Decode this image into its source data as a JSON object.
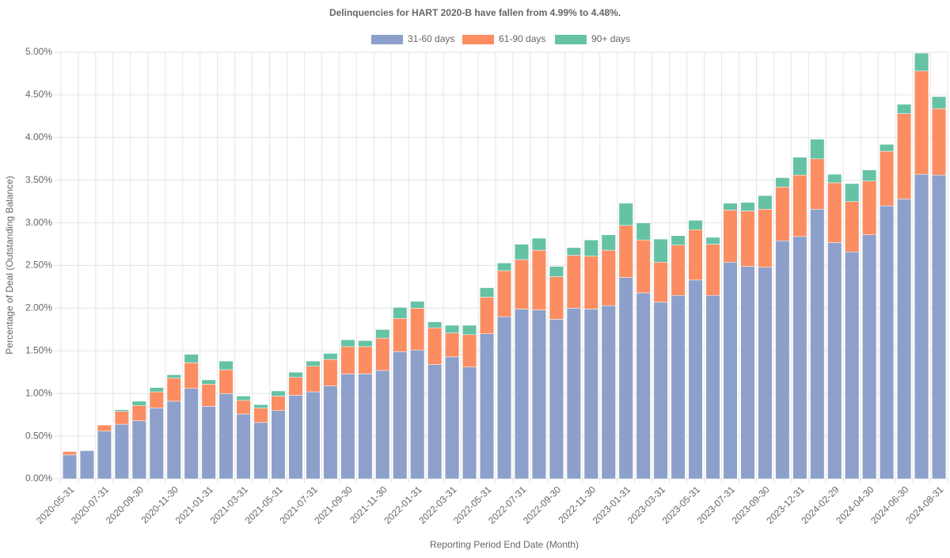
{
  "chart_data": {
    "type": "stacked-bar",
    "title": "Delinquencies for HART 2020-B have fallen from 4.99% to 4.48%.",
    "x_label": "Reporting Period End Date (Month)",
    "y_label": "Percentage of Deal (Outstanding Balance)",
    "categories": [
      "2020-05-31",
      null,
      "2020-07-31",
      null,
      "2020-09-30",
      null,
      "2020-11-30",
      null,
      "2021-01-31",
      null,
      "2021-03-31",
      null,
      "2021-05-31",
      null,
      "2021-07-31",
      null,
      "2021-09-30",
      null,
      "2021-11-30",
      null,
      "2022-01-31",
      null,
      "2022-03-31",
      null,
      "2022-05-31",
      null,
      "2022-07-31",
      null,
      "2022-09-30",
      null,
      "2022-11-30",
      null,
      "2023-01-31",
      null,
      "2023-03-31",
      null,
      "2023-05-31",
      null,
      "2023-07-31",
      null,
      "2023-09-30",
      null,
      "2023-12-31",
      null,
      "2024-02-29",
      null,
      "2024-04-30",
      null,
      "2024-06-30",
      null,
      "2024-08-31"
    ],
    "series": [
      {
        "name": "31-60 days",
        "color": "#8da0cb",
        "values": [
          0.28,
          0.33,
          0.56,
          0.64,
          0.68,
          0.83,
          0.91,
          1.06,
          0.85,
          1.0,
          0.76,
          0.66,
          0.8,
          0.98,
          1.02,
          1.09,
          1.23,
          1.23,
          1.27,
          1.49,
          1.51,
          1.34,
          1.43,
          1.31,
          1.7,
          1.9,
          1.99,
          1.98,
          1.87,
          2.0,
          1.99,
          2.03,
          2.36,
          2.18,
          2.07,
          2.15,
          2.33,
          2.15,
          2.54,
          2.49,
          2.48,
          2.79,
          2.84,
          3.16,
          2.77,
          2.66,
          2.86,
          3.2,
          3.28,
          3.57,
          3.56
        ]
      },
      {
        "name": "61-90 days",
        "color": "#fc8d62",
        "values": [
          0.04,
          0,
          0.07,
          0.15,
          0.18,
          0.19,
          0.27,
          0.3,
          0.26,
          0.28,
          0.16,
          0.17,
          0.17,
          0.21,
          0.3,
          0.31,
          0.32,
          0.32,
          0.38,
          0.39,
          0.49,
          0.43,
          0.28,
          0.38,
          0.43,
          0.54,
          0.58,
          0.7,
          0.5,
          0.62,
          0.62,
          0.65,
          0.61,
          0.62,
          0.47,
          0.59,
          0.59,
          0.6,
          0.61,
          0.65,
          0.68,
          0.63,
          0.72,
          0.59,
          0.7,
          0.59,
          0.63,
          0.64,
          1.0,
          1.21,
          0.78
        ]
      },
      {
        "name": "90+ days",
        "color": "#66c2a5",
        "values": [
          0,
          0,
          0,
          0.02,
          0.05,
          0.05,
          0.04,
          0.1,
          0.05,
          0.1,
          0.05,
          0.04,
          0.06,
          0.06,
          0.06,
          0.07,
          0.08,
          0.07,
          0.1,
          0.13,
          0.08,
          0.07,
          0.09,
          0.11,
          0.11,
          0.09,
          0.18,
          0.14,
          0.12,
          0.09,
          0.19,
          0.18,
          0.26,
          0.2,
          0.27,
          0.11,
          0.11,
          0.08,
          0.08,
          0.1,
          0.16,
          0.11,
          0.21,
          0.23,
          0.1,
          0.21,
          0.13,
          0.08,
          0.11,
          0.21,
          0.14
        ]
      }
    ],
    "ylim": [
      0,
      5
    ],
    "yticks": [
      {
        "value": 0,
        "label": "0.00%"
      },
      {
        "value": 0.5,
        "label": "0.50%"
      },
      {
        "value": 1,
        "label": "1.00%"
      },
      {
        "value": 1.5,
        "label": "1.50%"
      },
      {
        "value": 2,
        "label": "2.00%"
      },
      {
        "value": 2.5,
        "label": "2.50%"
      },
      {
        "value": 3,
        "label": "3.00%"
      },
      {
        "value": 3.5,
        "label": "3.50%"
      },
      {
        "value": 4,
        "label": "4.00%"
      },
      {
        "value": 4.5,
        "label": "4.50%"
      },
      {
        "value": 5,
        "label": "5.00%"
      }
    ],
    "grid": true,
    "legend": "top"
  }
}
